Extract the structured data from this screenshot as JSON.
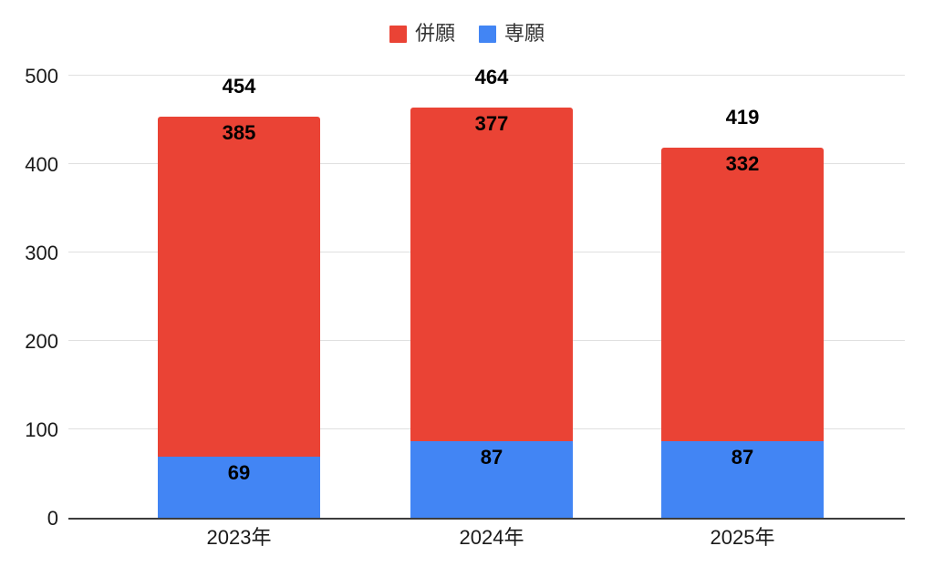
{
  "chart_data": {
    "type": "bar",
    "stacked": true,
    "title": "",
    "categories": [
      "2023年",
      "2024年",
      "2025年"
    ],
    "series": [
      {
        "name": "併願",
        "color": "#EA4335",
        "values": [
          385,
          377,
          332
        ]
      },
      {
        "name": "専願",
        "color": "#4285F4",
        "values": [
          69,
          87,
          87
        ]
      }
    ],
    "totals": [
      454,
      464,
      419
    ],
    "ylim": [
      0,
      500
    ],
    "yticks": [
      0,
      100,
      200,
      300,
      400,
      500
    ],
    "grid": true,
    "legend_position": "top",
    "colors": {
      "gridline": "#e0e0e0",
      "axis_line": "#3c3c3c",
      "axis_label": "#1a1a1a",
      "value_label": "#000000",
      "legend_label": "#333333",
      "background": "#ffffff"
    }
  }
}
